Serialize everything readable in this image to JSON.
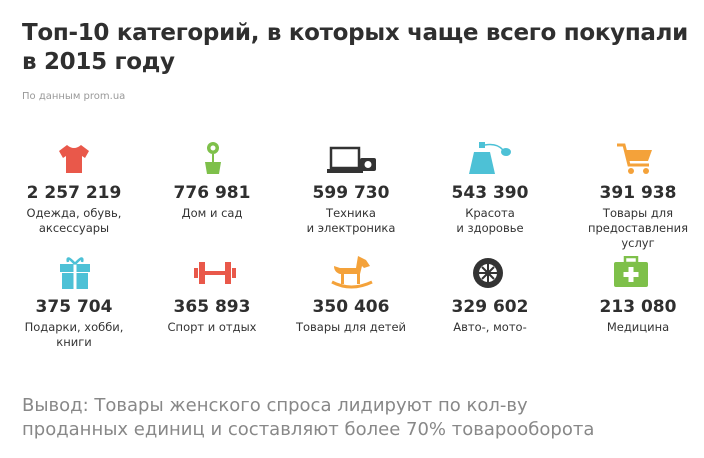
{
  "header": {
    "title_lines": [
      "Топ-10 категорий, в которых чаще всего покупали",
      "в 2015 году"
    ],
    "source": "По данным prom.ua"
  },
  "items": [
    {
      "value": "2 257 219",
      "label_lines": [
        "Одежда, обувь,",
        "аксессуары"
      ]
    },
    {
      "value": "776 981",
      "label_lines": [
        "Дом и сад"
      ]
    },
    {
      "value": "599 730",
      "label_lines": [
        "Техника",
        "и электроника"
      ]
    },
    {
      "value": "543 390",
      "label_lines": [
        "Красота",
        "и здоровье"
      ]
    },
    {
      "value": "391 938",
      "label_lines": [
        "Товары для",
        "предоставления",
        "услуг"
      ]
    },
    {
      "value": "375 704",
      "label_lines": [
        "Подарки, хобби,",
        "книги"
      ]
    },
    {
      "value": "365 893",
      "label_lines": [
        "Спорт и отдых"
      ]
    },
    {
      "value": "350 406",
      "label_lines": [
        "Товары для детей"
      ]
    },
    {
      "value": "329 602",
      "label_lines": [
        "Авто-, мото-"
      ]
    },
    {
      "value": "213 080",
      "label_lines": [
        "Медицина"
      ]
    }
  ],
  "conclusion_lines": [
    "Вывод: Товары женского спроса лидируют по кол-ву",
    "проданных единиц и составляют более 70% товарооборота"
  ]
}
